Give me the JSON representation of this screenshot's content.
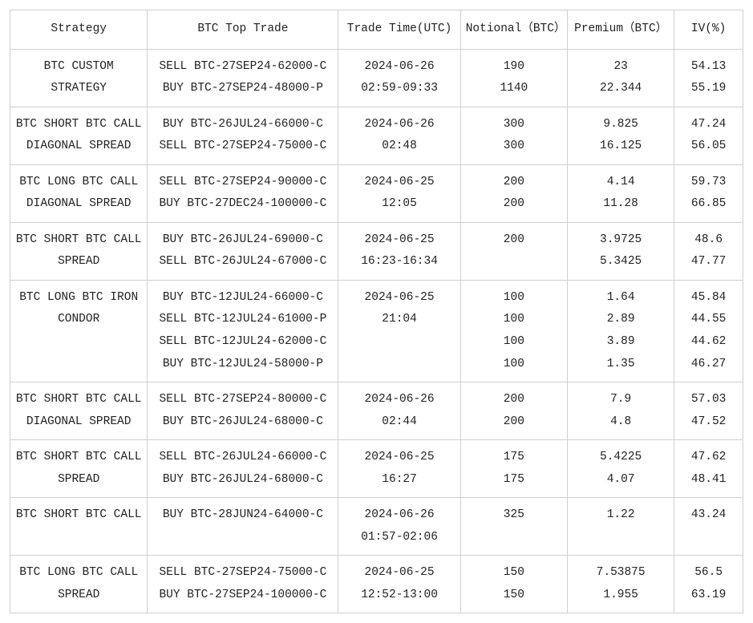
{
  "table": {
    "columns": [
      "Strategy",
      "BTC Top Trade",
      "Trade Time(UTC)",
      "Notional（BTC）",
      "Premium（BTC）",
      "IV(%)"
    ],
    "rows": [
      {
        "strategy": [
          "BTC CUSTOM",
          "STRATEGY"
        ],
        "trades": [
          "SELL BTC-27SEP24-62000-C",
          "BUY BTC-27SEP24-48000-P"
        ],
        "time": [
          "2024-06-26",
          "02:59-09:33"
        ],
        "notional": [
          "190",
          "1140"
        ],
        "premium": [
          "23",
          "22.344"
        ],
        "iv": [
          "54.13",
          "55.19"
        ]
      },
      {
        "strategy": [
          "BTC SHORT BTC CALL",
          "DIAGONAL SPREAD"
        ],
        "trades": [
          "BUY BTC-26JUL24-66000-C",
          "SELL BTC-27SEP24-75000-C"
        ],
        "time": [
          "2024-06-26",
          "02:48"
        ],
        "notional": [
          "300",
          "300"
        ],
        "premium": [
          "9.825",
          "16.125"
        ],
        "iv": [
          "47.24",
          "56.05"
        ]
      },
      {
        "strategy": [
          "BTC LONG BTC CALL",
          "DIAGONAL SPREAD"
        ],
        "trades": [
          "SELL BTC-27SEP24-90000-C",
          "BUY BTC-27DEC24-100000-C"
        ],
        "time": [
          "2024-06-25",
          "12:05"
        ],
        "notional": [
          "200",
          "200"
        ],
        "premium": [
          "4.14",
          "11.28"
        ],
        "iv": [
          "59.73",
          "66.85"
        ]
      },
      {
        "strategy": [
          "BTC SHORT BTC CALL",
          "SPREAD"
        ],
        "trades": [
          "BUY BTC-26JUL24-69000-C",
          "SELL BTC-26JUL24-67000-C"
        ],
        "time": [
          "2024-06-25",
          "16:23-16:34"
        ],
        "notional": [
          "200",
          ""
        ],
        "premium": [
          "3.9725",
          "5.3425"
        ],
        "iv": [
          "48.6",
          "47.77"
        ]
      },
      {
        "strategy": [
          "BTC LONG BTC IRON",
          "CONDOR"
        ],
        "trades": [
          "BUY BTC-12JUL24-66000-C",
          "SELL BTC-12JUL24-61000-P",
          "SELL BTC-12JUL24-62000-C",
          "BUY BTC-12JUL24-58000-P"
        ],
        "time": [
          "2024-06-25",
          "21:04"
        ],
        "notional": [
          "100",
          "100",
          "100",
          "100"
        ],
        "premium": [
          "1.64",
          "2.89",
          "3.89",
          "1.35"
        ],
        "iv": [
          "45.84",
          "44.55",
          "44.62",
          "46.27"
        ]
      },
      {
        "strategy": [
          "BTC SHORT BTC CALL",
          "DIAGONAL SPREAD"
        ],
        "trades": [
          "SELL BTC-27SEP24-80000-C",
          "BUY BTC-26JUL24-68000-C"
        ],
        "time": [
          "2024-06-26",
          "02:44"
        ],
        "notional": [
          "200",
          "200"
        ],
        "premium": [
          "7.9",
          "4.8"
        ],
        "iv": [
          "57.03",
          "47.52"
        ]
      },
      {
        "strategy": [
          "BTC SHORT BTC CALL",
          "SPREAD"
        ],
        "trades": [
          "SELL BTC-26JUL24-66000-C",
          "BUY BTC-26JUL24-68000-C"
        ],
        "time": [
          "2024-06-25",
          "16:27"
        ],
        "notional": [
          "175",
          "175"
        ],
        "premium": [
          "5.4225",
          "4.07"
        ],
        "iv": [
          "47.62",
          "48.41"
        ]
      },
      {
        "strategy": [
          "BTC SHORT BTC CALL"
        ],
        "trades": [
          "BUY BTC-28JUN24-64000-C"
        ],
        "time": [
          "2024-06-26",
          "01:57-02:06"
        ],
        "notional": [
          "325"
        ],
        "premium": [
          "1.22"
        ],
        "iv": [
          "43.24"
        ]
      },
      {
        "strategy": [
          "BTC LONG BTC CALL",
          "SPREAD"
        ],
        "trades": [
          "SELL BTC-27SEP24-75000-C",
          "BUY BTC-27SEP24-100000-C"
        ],
        "time": [
          "2024-06-25",
          "12:52-13:00"
        ],
        "notional": [
          "150",
          "150"
        ],
        "premium": [
          "7.53875",
          "1.955"
        ],
        "iv": [
          "56.5",
          "63.19"
        ]
      }
    ]
  }
}
